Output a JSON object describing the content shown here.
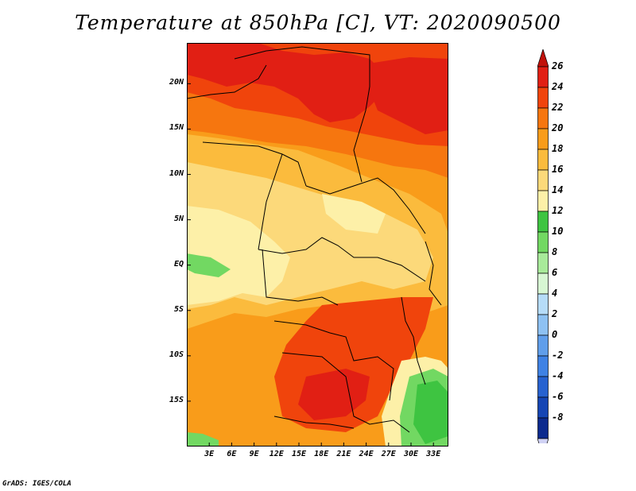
{
  "title": "Temperature at 850hPa [C], VT: 2020090500",
  "credit": "GrADS: IGES/COLA",
  "map": {
    "lat_labels": [
      "20N",
      "15N",
      "10N",
      "5N",
      "EQ",
      "5S",
      "10S",
      "15S"
    ],
    "lat_values": [
      20,
      15,
      10,
      5,
      0,
      -5,
      -10,
      -15
    ],
    "lon_labels": [
      "3E",
      "6E",
      "9E",
      "12E",
      "15E",
      "18E",
      "21E",
      "24E",
      "27E",
      "30E",
      "33E"
    ],
    "lon_values": [
      3,
      6,
      9,
      12,
      15,
      18,
      21,
      24,
      27,
      30,
      33
    ],
    "lat_range": [
      -20,
      24.5
    ],
    "lon_range": [
      0,
      35
    ]
  },
  "colorbar": {
    "labels": [
      "26",
      "24",
      "22",
      "20",
      "18",
      "16",
      "14",
      "12",
      "10",
      "8",
      "6",
      "4",
      "2",
      "0",
      "-2",
      "-4",
      "-6",
      "-8"
    ],
    "colors": [
      "#e11f14",
      "#f0440c",
      "#f6760f",
      "#f99c1a",
      "#fbbb3d",
      "#fcd97a",
      "#fdf0a8",
      "#3ec441",
      "#72d862",
      "#a8ea9a",
      "#d7f7d3",
      "#b6dcf8",
      "#8ec1f2",
      "#609eea",
      "#3f82e4",
      "#2762d0",
      "#1545b4",
      "#0c2a8e"
    ],
    "top_color": "#c1120b",
    "bottom_color": "#d0d2f4"
  }
}
